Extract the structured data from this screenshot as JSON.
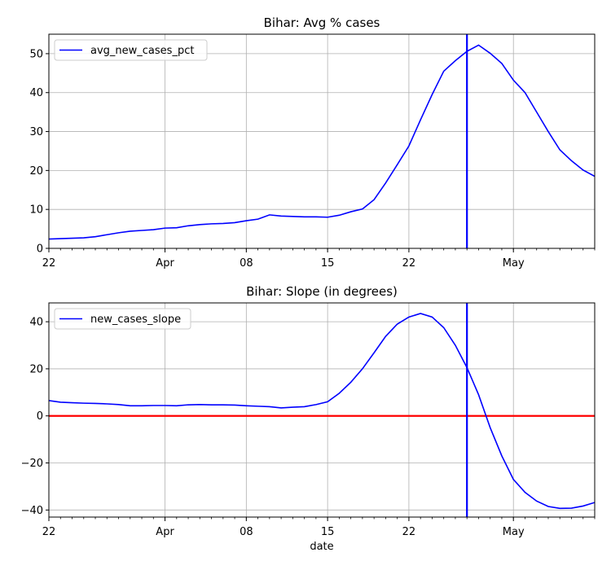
{
  "chart_data": [
    {
      "type": "line",
      "title": "Bihar: Avg % cases",
      "xlabel": "",
      "ylabel": "",
      "x_start": "Mar 22",
      "x_end": "May 08",
      "xlim": [
        "Mar 22",
        "May 08"
      ],
      "ylim": [
        0,
        55
      ],
      "y_ticks": [
        0,
        10,
        20,
        30,
        40,
        50
      ],
      "x_major_ticks": [
        {
          "date": "Mar 22",
          "label": "22"
        },
        {
          "date": "Apr 01",
          "label": "Apr"
        },
        {
          "date": "Apr 08",
          "label": "08"
        },
        {
          "date": "Apr 15",
          "label": "15"
        },
        {
          "date": "Apr 22",
          "label": "22"
        },
        {
          "date": "May 01",
          "label": "May"
        }
      ],
      "grid": true,
      "legend": "upper-left",
      "colors": {
        "series": "#0000ff",
        "vline": "#0000ff"
      },
      "vline_date": "Apr 27",
      "series": [
        {
          "name": "avg_new_cases_pct",
          "x": [
            "Mar 22",
            "Mar 23",
            "Mar 24",
            "Mar 25",
            "Mar 26",
            "Mar 27",
            "Mar 28",
            "Mar 29",
            "Mar 30",
            "Mar 31",
            "Apr 01",
            "Apr 02",
            "Apr 03",
            "Apr 04",
            "Apr 05",
            "Apr 06",
            "Apr 07",
            "Apr 08",
            "Apr 09",
            "Apr 10",
            "Apr 11",
            "Apr 12",
            "Apr 13",
            "Apr 14",
            "Apr 15",
            "Apr 16",
            "Apr 17",
            "Apr 18",
            "Apr 19",
            "Apr 20",
            "Apr 21",
            "Apr 22",
            "Apr 23",
            "Apr 24",
            "Apr 25",
            "Apr 26",
            "Apr 27",
            "Apr 28",
            "Apr 29",
            "Apr 30",
            "May 01",
            "May 02",
            "May 03",
            "May 04",
            "May 05",
            "May 06",
            "May 07",
            "May 08"
          ],
          "values": [
            2.4,
            2.5,
            2.6,
            2.7,
            3.0,
            3.5,
            4.0,
            4.4,
            4.6,
            4.8,
            5.2,
            5.3,
            5.8,
            6.1,
            6.3,
            6.4,
            6.6,
            7.1,
            7.5,
            8.6,
            8.3,
            8.2,
            8.1,
            8.1,
            8.0,
            8.5,
            9.4,
            10.1,
            12.5,
            16.8,
            21.5,
            26.3,
            33.0,
            39.5,
            45.5,
            48.2,
            50.6,
            52.2,
            50.1,
            47.5,
            43.2,
            40.0,
            35.0,
            30.0,
            25.3,
            22.5,
            20.1,
            18.5
          ]
        }
      ]
    },
    {
      "type": "line",
      "title": "Bihar: Slope (in degrees)",
      "xlabel": "date",
      "ylabel": "",
      "x_start": "Mar 22",
      "x_end": "May 08",
      "xlim": [
        "Mar 22",
        "May 08"
      ],
      "ylim": [
        -43,
        48
      ],
      "y_ticks": [
        -40,
        -20,
        0,
        20,
        40
      ],
      "x_major_ticks": [
        {
          "date": "Mar 22",
          "label": "22"
        },
        {
          "date": "Apr 01",
          "label": "Apr"
        },
        {
          "date": "Apr 08",
          "label": "08"
        },
        {
          "date": "Apr 15",
          "label": "15"
        },
        {
          "date": "Apr 22",
          "label": "22"
        },
        {
          "date": "May 01",
          "label": "May"
        }
      ],
      "grid": true,
      "legend": "upper-left",
      "colors": {
        "series": "#0000ff",
        "vline": "#0000ff",
        "hline": "#ff0000"
      },
      "vline_date": "Apr 27",
      "hline_value": 0,
      "series": [
        {
          "name": "new_cases_slope",
          "x": [
            "Mar 22",
            "Mar 23",
            "Mar 24",
            "Mar 25",
            "Mar 26",
            "Mar 27",
            "Mar 28",
            "Mar 29",
            "Mar 30",
            "Mar 31",
            "Apr 01",
            "Apr 02",
            "Apr 03",
            "Apr 04",
            "Apr 05",
            "Apr 06",
            "Apr 07",
            "Apr 08",
            "Apr 09",
            "Apr 10",
            "Apr 11",
            "Apr 12",
            "Apr 13",
            "Apr 14",
            "Apr 15",
            "Apr 16",
            "Apr 17",
            "Apr 18",
            "Apr 19",
            "Apr 20",
            "Apr 21",
            "Apr 22",
            "Apr 23",
            "Apr 24",
            "Apr 25",
            "Apr 26",
            "Apr 27",
            "Apr 28",
            "Apr 29",
            "Apr 30",
            "May 01",
            "May 02",
            "May 03",
            "May 04",
            "May 05",
            "May 06",
            "May 07",
            "May 08"
          ],
          "values": [
            6.5,
            5.8,
            5.6,
            5.4,
            5.3,
            5.1,
            4.8,
            4.3,
            4.3,
            4.4,
            4.4,
            4.3,
            4.7,
            4.8,
            4.7,
            4.7,
            4.6,
            4.3,
            4.1,
            3.9,
            3.4,
            3.7,
            3.9,
            4.8,
            6.0,
            9.6,
            14.3,
            20.0,
            26.8,
            33.8,
            39.0,
            42.0,
            43.5,
            42.0,
            37.5,
            30.0,
            20.5,
            9.0,
            -5.0,
            -17.0,
            -27.0,
            -32.5,
            -36.2,
            -38.5,
            -39.3,
            -39.2,
            -38.3,
            -36.8
          ]
        }
      ]
    }
  ]
}
